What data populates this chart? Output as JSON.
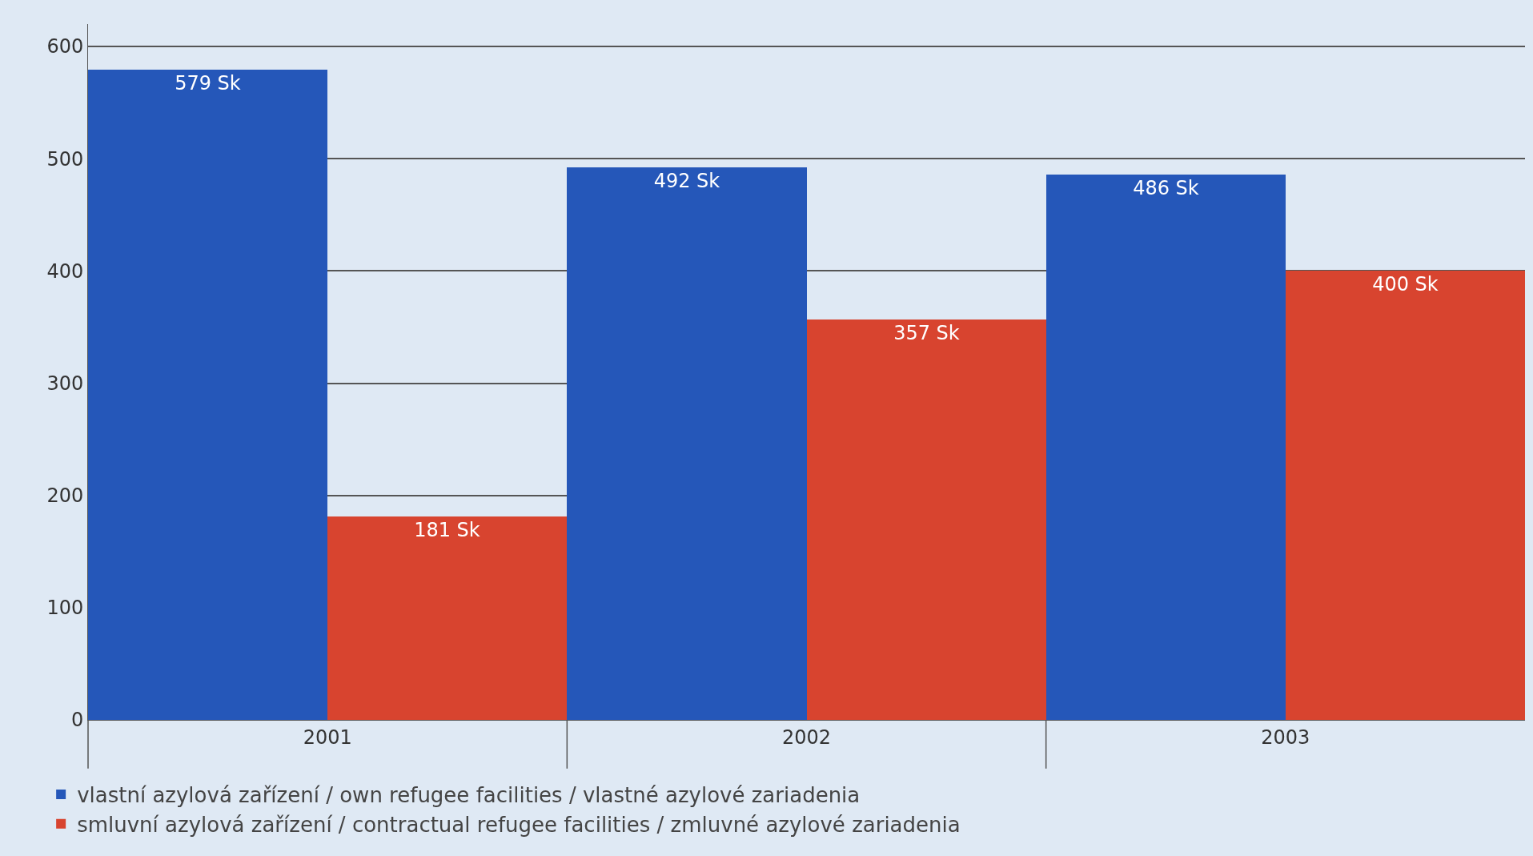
{
  "chart_data": {
    "type": "bar",
    "categories": [
      "2001",
      "2002",
      "2003"
    ],
    "series": [
      {
        "name": "vlastní azylová zařízení / own refugee facilities / vlastné azylové zariadenia",
        "color": "#2557b9",
        "values": [
          579,
          492,
          486
        ],
        "value_labels": [
          "579 Sk",
          "492 Sk",
          "486 Sk"
        ]
      },
      {
        "name": "smluvní azylová zařízení / contractual refugee facilities / zmluvné azylové zariadenia",
        "color": "#d8442f",
        "values": [
          181,
          357,
          400
        ],
        "value_labels": [
          "181 Sk",
          "357 Sk",
          "400 Sk"
        ]
      }
    ],
    "ylim": [
      0,
      620
    ],
    "yticks": [
      0,
      100,
      200,
      300,
      400,
      500,
      600
    ],
    "grid": "y",
    "legend": "bottom left"
  }
}
